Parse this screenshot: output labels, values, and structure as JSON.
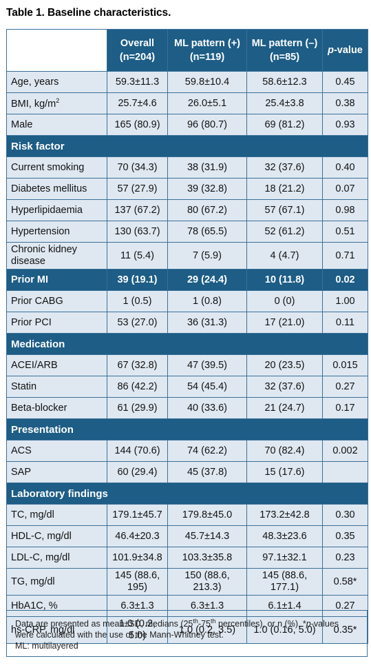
{
  "title": "Table 1. Baseline characteristics.",
  "columns": {
    "overall": "Overall (n=204)",
    "ml_pos": "ML pattern (+) (n=119)",
    "ml_neg": "ML pattern (–) (n=85)",
    "pvalue_prefix": "p",
    "pvalue_suffix": "-value"
  },
  "rows": [
    {
      "label": "Age, years",
      "overall": "59.3±11.3",
      "pos": "59.8±10.4",
      "neg": "58.6±12.3",
      "p": "0.45"
    },
    {
      "label": "BMI, kg/m",
      "label_sup": "2",
      "overall": "25.7±4.6",
      "pos": "26.0±5.1",
      "neg": "25.4±3.8",
      "p": "0.38"
    },
    {
      "label": "Male",
      "overall": "165 (80.9)",
      "pos": "96 (80.7)",
      "neg": "69 (81.2)",
      "p": "0.93"
    },
    {
      "section": "Risk factor"
    },
    {
      "label": "Current smoking",
      "overall": "70 (34.3)",
      "pos": "38 (31.9)",
      "neg": "32 (37.6)",
      "p": "0.40"
    },
    {
      "label": "Diabetes mellitus",
      "overall": "57 (27.9)",
      "pos": "39 (32.8)",
      "neg": "18 (21.2)",
      "p": "0.07"
    },
    {
      "label": "Hyperlipidaemia",
      "overall": "137 (67.2)",
      "pos": "80 (67.2)",
      "neg": "57 (67.1)",
      "p": "0.98"
    },
    {
      "label": "Hypertension",
      "overall": "130 (63.7)",
      "pos": "78 (65.5)",
      "neg": "52 (61.2)",
      "p": "0.51"
    },
    {
      "label": "Chronic kidney disease",
      "overall": "11 (5.4)",
      "pos": "7 (5.9)",
      "neg": "4 (4.7)",
      "p": "0.71"
    },
    {
      "label": "Prior MI",
      "overall": "39 (19.1)",
      "pos": "29 (24.4)",
      "neg": "10 (11.8)",
      "p": "0.02",
      "highlight": true
    },
    {
      "label": "Prior CABG",
      "overall": "1 (0.5)",
      "pos": "1 (0.8)",
      "neg": "0 (0)",
      "p": "1.00"
    },
    {
      "label": "Prior PCI",
      "overall": "53 (27.0)",
      "pos": "36 (31.3)",
      "neg": "17 (21.0)",
      "p": "0.11"
    },
    {
      "section": "Medication"
    },
    {
      "label": "ACEI/ARB",
      "overall": "67 (32.8)",
      "pos": "47 (39.5)",
      "neg": "20 (23.5)",
      "p": "0.015"
    },
    {
      "label": "Statin",
      "overall": "86 (42.2)",
      "pos": "54 (45.4)",
      "neg": "32 (37.6)",
      "p": "0.27"
    },
    {
      "label": "Beta-blocker",
      "overall": "61 (29.9)",
      "pos": "40 (33.6)",
      "neg": "21 (24.7)",
      "p": "0.17"
    },
    {
      "section": "Presentation"
    },
    {
      "label": "ACS",
      "overall": "144 (70.6)",
      "pos": "74 (62.2)",
      "neg": "70 (82.4)",
      "p": "0.002"
    },
    {
      "label": "SAP",
      "overall": "60 (29.4)",
      "pos": "45 (37.8)",
      "neg": "15 (17.6)",
      "p": ""
    },
    {
      "section": "Laboratory findings"
    },
    {
      "label": "TC, mg/dl",
      "overall": "179.1±45.7",
      "pos": "179.8±45.0",
      "neg": "173.2±42.8",
      "p": "0.30"
    },
    {
      "label": "HDL-C, mg/dl",
      "overall": "46.4±20.3",
      "pos": "45.7±14.3",
      "neg": "48.3±23.6",
      "p": "0.35"
    },
    {
      "label": "LDL-C, mg/dl",
      "overall": "101.9±34.8",
      "pos": "103.3±35.8",
      "neg": "97.1±32.1",
      "p": "0.23"
    },
    {
      "label": "TG, mg/dl",
      "overall": "145 (88.6, 195)",
      "pos": "150 (88.6, 213.3)",
      "neg": "145 (88.6, 177.1)",
      "p": "0.58*"
    },
    {
      "label": "HbA1C, %",
      "overall": "6.3±1.3",
      "pos": "6.3±1.3",
      "neg": "6.1±1.4",
      "p": "0.27"
    },
    {
      "label": "hs-CRP, mg/dl",
      "overall": "1.0 (0.2, 5.0)",
      "pos": "1.0 (0.2, 3.5)",
      "neg": "1.0 (0.16, 5.0)",
      "p": "0.35*"
    }
  ],
  "footnote": {
    "line1_a": "Data are presented as mean±SD, medians (25",
    "sup1": "th",
    "line1_b": "-75",
    "sup2": "th",
    "line1_c": " percentiles), or n (%). *",
    "p_italic": "p",
    "line1_d": "-values were calculated with the use of the Mann-Whitney test.",
    "line2": "ML: multilayered"
  },
  "colors": {
    "header": "#1d5d86",
    "row_bg": "#dfe8f1",
    "border": "#3b6f98"
  }
}
